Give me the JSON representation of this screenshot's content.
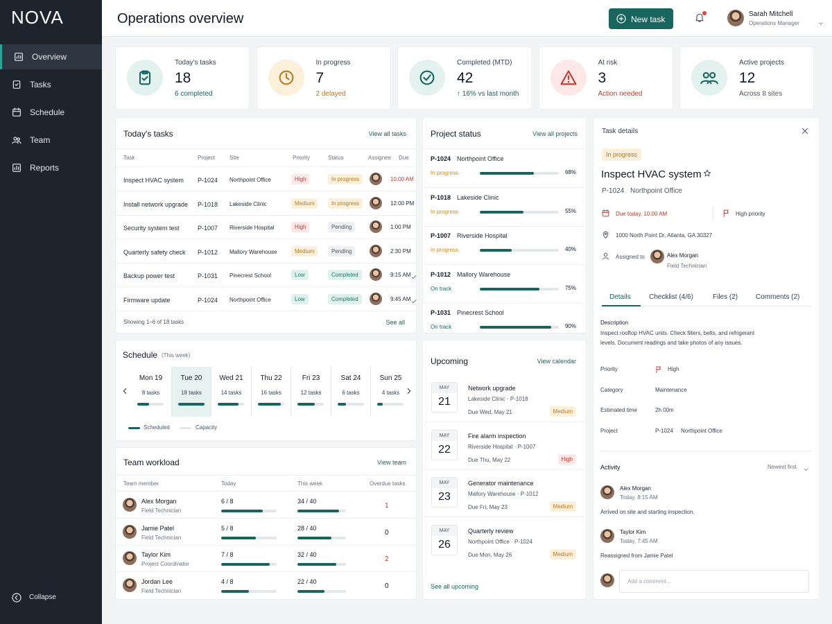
{
  "sidebar": {
    "logo": "NOVA",
    "nav": [
      "Overview",
      "Tasks",
      "Schedule",
      "Team",
      "Reports"
    ],
    "collapse": "Collapse"
  },
  "header": {
    "title": "Operations overview",
    "button": "New task",
    "user": {
      "name": "Sarah Mitchell",
      "role": "Operations Manager"
    }
  },
  "kpis": [
    {
      "label": "Today's tasks",
      "value": 18,
      "note": "6 completed"
    },
    {
      "label": "In progress",
      "value": 7,
      "note": "2 delayed"
    },
    {
      "label": "Completed (MTD)",
      "value": 42,
      "note": "↑ 16% vs last month"
    },
    {
      "label": "At risk",
      "value": 3,
      "note": "Action needed"
    },
    {
      "label": "Active projects",
      "value": 12,
      "note": "Across 8 sites"
    }
  ],
  "todays_tasks": {
    "title": "Today's tasks",
    "link": "View all tasks",
    "columns": [
      "Task",
      "Project",
      "Site",
      "Priority",
      "Status",
      "Assignee",
      "Due"
    ],
    "rows": [
      {
        "task": "Inspect HVAC system",
        "project": "P-1024",
        "site": "Northpoint Office",
        "priority": "High",
        "status": "In progress",
        "due": "10:00 AM"
      },
      {
        "task": "Install network upgrade",
        "project": "P-1018",
        "site": "Lakeside Clinic",
        "priority": "Medium",
        "status": "In progress",
        "due": "12:00 PM"
      },
      {
        "task": "Security system test",
        "project": "P-1007",
        "site": "Riverside Hospital",
        "priority": "High",
        "status": "Pending",
        "due": "1:00 PM"
      },
      {
        "task": "Quarterly safety check",
        "project": "P-1012",
        "site": "Mallory Warehouse",
        "priority": "Medium",
        "status": "Pending",
        "due": "2:30 PM"
      },
      {
        "task": "Backup power test",
        "project": "P-1031",
        "site": "Pinecrest School",
        "priority": "Low",
        "status": "Completed",
        "due": "9:15 AM"
      },
      {
        "task": "Firmware update",
        "project": "P-1024",
        "site": "Northpoint Office",
        "priority": "Low",
        "status": "Completed",
        "due": "9:45 AM"
      }
    ],
    "footer": "Showing 1–6 of 18 tasks",
    "footer_link": "See all"
  },
  "schedule": {
    "title": "Schedule",
    "subtitle": "(This week)",
    "days": [
      {
        "day": "Mon 19",
        "tasks": {
          "value": 8,
          "label": "8 tasks"
        }
      },
      {
        "day": "Tue 20",
        "tasks": {
          "value": 18,
          "label": "18 tasks"
        }
      },
      {
        "day": "Wed 21",
        "tasks": {
          "value": 14,
          "label": "14 tasks"
        }
      },
      {
        "day": "Thu 22",
        "tasks": {
          "value": 16,
          "label": "16 tasks"
        }
      },
      {
        "day": "Fri 23",
        "tasks": {
          "value": 12,
          "label": "12 tasks"
        }
      },
      {
        "day": "Sat 24",
        "tasks": {
          "value": 6,
          "label": "6 tasks"
        }
      },
      {
        "day": "Sun 25",
        "tasks": {
          "value": 4,
          "label": "4 tasks"
        }
      }
    ],
    "legend": [
      "Scheduled",
      "Capacity"
    ]
  },
  "team_workload": {
    "title": "Team workload",
    "link": "View team",
    "columns": [
      "Team member",
      "Today",
      "This week",
      "Overdue tasks"
    ],
    "rows": [
      {
        "name": "Alex Morgan",
        "role": "Field Technician",
        "today": {
          "done": 6,
          "total": 8,
          "label": "6 / 8"
        },
        "week": {
          "done": 34,
          "total": 40,
          "label": "34 / 40"
        },
        "overdue": 1
      },
      {
        "name": "Jamie Patel",
        "role": "Field Technician",
        "today": {
          "done": 5,
          "total": 8,
          "label": "5 / 8"
        },
        "week": {
          "done": 28,
          "total": 40,
          "label": "28 / 40"
        },
        "overdue": 0
      },
      {
        "name": "Taylor Kim",
        "role": "Project Coordinator",
        "today": {
          "done": 7,
          "total": 8,
          "label": "7 / 8"
        },
        "week": {
          "done": 32,
          "total": 40,
          "label": "32 / 40"
        },
        "overdue": 2
      },
      {
        "name": "Jordan Lee",
        "role": "Field Technician",
        "today": {
          "done": 4,
          "total": 8,
          "label": "4 / 8"
        },
        "week": {
          "done": 22,
          "total": 40,
          "label": "22 / 40"
        },
        "overdue": 0
      }
    ]
  },
  "project_status": {
    "title": "Project status",
    "link": "View all projects",
    "projects": [
      {
        "id": "P-1024",
        "name": "Northpoint Office",
        "status": "In progress",
        "progress": 68,
        "progress_label": "68%"
      },
      {
        "id": "P-1018",
        "name": "Lakeside Clinic",
        "status": "In progress",
        "progress": 55,
        "progress_label": "55%"
      },
      {
        "id": "P-1007",
        "name": "Riverside Hospital",
        "status": "In progress",
        "progress": 40,
        "progress_label": "40%"
      },
      {
        "id": "P-1012",
        "name": "Mallory Warehouse",
        "status": "On track",
        "progress": 75,
        "progress_label": "75%"
      },
      {
        "id": "P-1031",
        "name": "Pinecrest School",
        "status": "On track",
        "progress": 90,
        "progress_label": "90%"
      }
    ]
  },
  "upcoming": {
    "title": "Upcoming",
    "link": "View calendar",
    "items": [
      {
        "month": "MAY",
        "day": 21,
        "title": "Network upgrade",
        "sub": "Lakeside Clinic · P-1018",
        "due": "Due Wed, May 21",
        "priority": "Medium"
      },
      {
        "month": "MAY",
        "day": 22,
        "title": "Fire alarm inspection",
        "sub": "Riverside Hospital · P-1007",
        "due": "Due Thu, May 22",
        "priority": "High"
      },
      {
        "month": "MAY",
        "day": 23,
        "title": "Generator maintenance",
        "sub": "Mallory Warehouse · P-1012",
        "due": "Due Fri, May 23",
        "priority": "Medium"
      },
      {
        "month": "MAY",
        "day": 26,
        "title": "Quarterly review",
        "sub": "Northpoint Office · P-1024",
        "due": "Due Mon, May 26",
        "priority": "Medium"
      }
    ],
    "footer_link": "See all upcoming"
  },
  "task_details": {
    "heading": "Task details",
    "status": "In progress",
    "title": "Inspect HVAC system",
    "project": "P-1024",
    "site": "Northpoint Office",
    "due": "Due today, 10:00 AM",
    "priority_flag": "High priority",
    "address": "1000 North Point Dr, Atlanta, GA 30327",
    "assigned_label": "Assigned to",
    "assignee": "Alex Morgan",
    "assignee_role": "Field Technician",
    "tabs": [
      "Details",
      "Checklist (4/6)",
      "Files (2)",
      "Comments (2)"
    ],
    "description_label": "Description",
    "description": "Inspect rooftop HVAC units. Check filters, belts, and refrigerant levels. Document readings and take photos of any issues.",
    "fields": [
      {
        "label": "Priority",
        "value": "High"
      },
      {
        "label": "Category",
        "value": "Maintenance"
      },
      {
        "label": "Estimated time",
        "value": "2h 00m"
      },
      {
        "label": "Project",
        "value": "P-1024",
        "detail": "Northpoint Office"
      }
    ],
    "activity_title": "Activity",
    "sort": "Newest first",
    "activity": [
      {
        "name": "Alex Morgan",
        "time": "Today, 8:15 AM",
        "text": "Arrived on site and starting inspection."
      },
      {
        "name": "Taylor Kim",
        "time": "Today, 7:45 AM",
        "text": "Reassigned from Jamie Patel"
      }
    ],
    "comment_placeholder": "Add a comment..."
  }
}
